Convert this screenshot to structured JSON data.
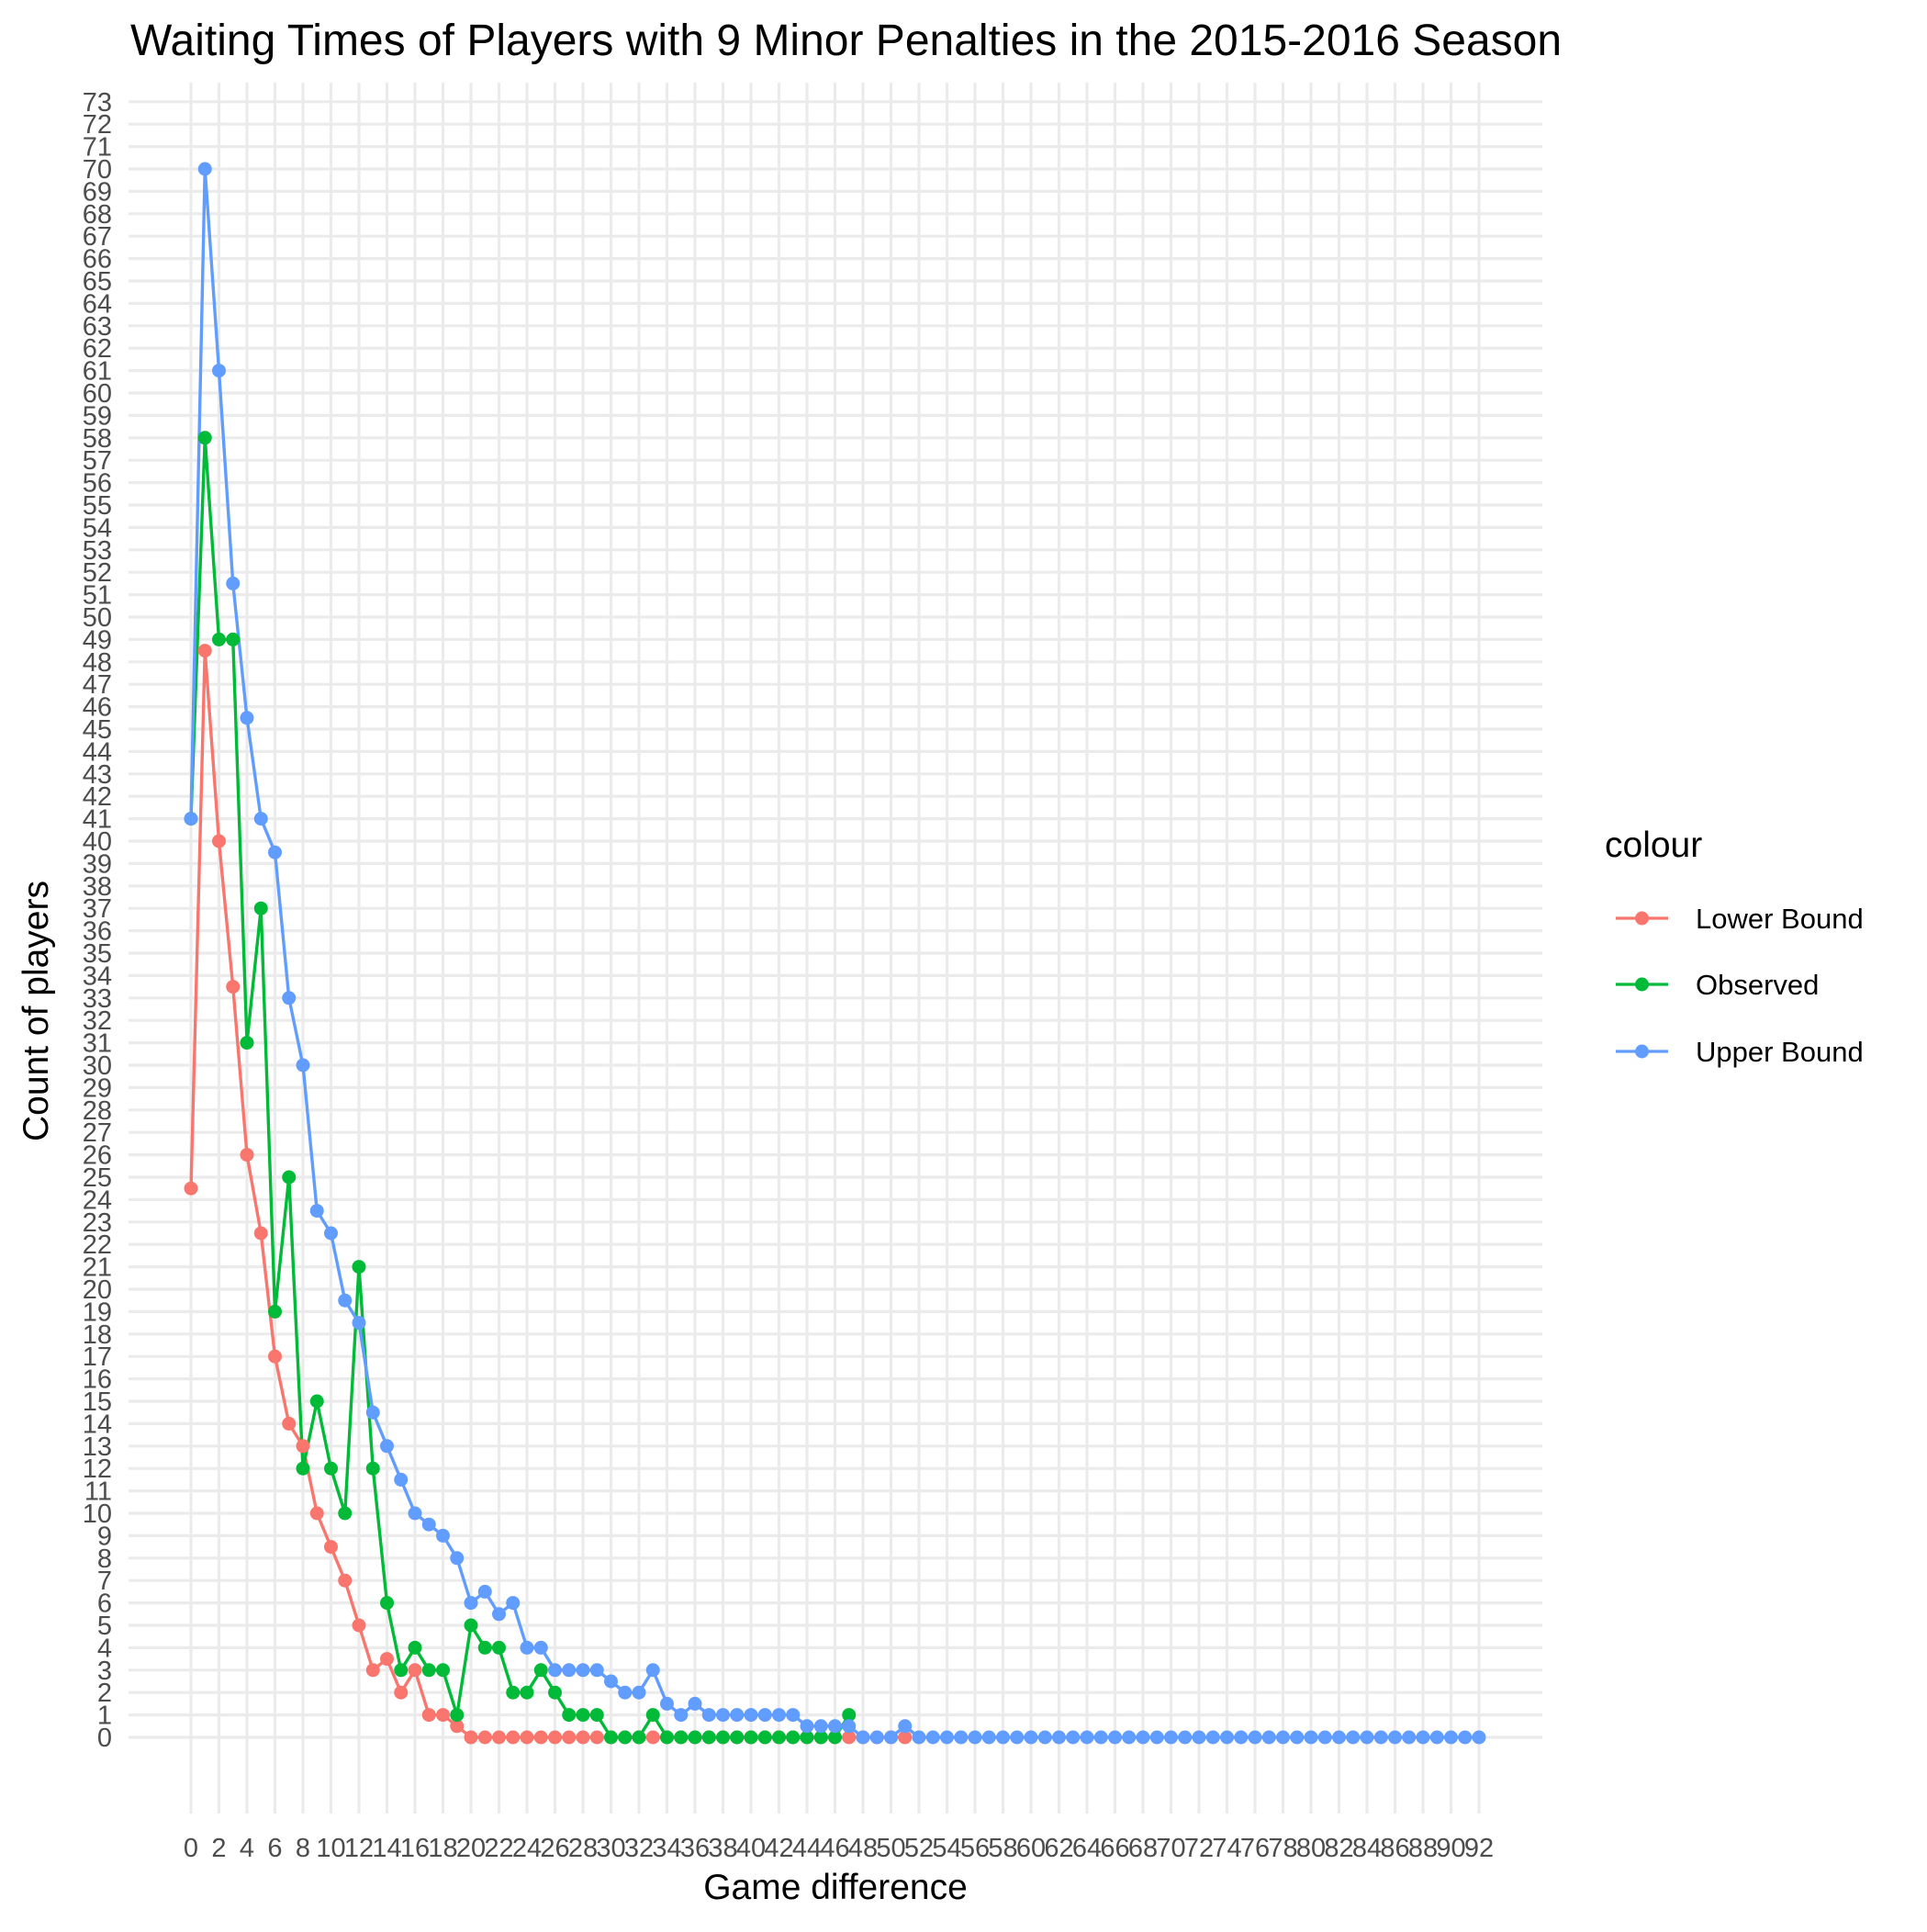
{
  "chart_data": {
    "type": "line",
    "title": "Waiting Times of Players with 9 Minor Penalties in the 2015-2016 Season",
    "xlabel": "Game difference",
    "ylabel": "Count of players",
    "xlim": [
      0,
      92
    ],
    "ylim": [
      0,
      73
    ],
    "x_ticks": [
      0,
      2,
      4,
      6,
      8,
      10,
      12,
      14,
      16,
      18,
      20,
      22,
      24,
      26,
      28,
      30,
      32,
      34,
      36,
      38,
      40,
      42,
      44,
      46,
      48,
      50,
      52,
      54,
      56,
      58,
      60,
      62,
      64,
      66,
      68,
      70,
      72,
      74,
      76,
      78,
      80,
      82,
      84,
      86,
      88,
      90,
      92
    ],
    "y_ticks": [
      0,
      1,
      2,
      3,
      4,
      5,
      6,
      7,
      8,
      9,
      10,
      11,
      12,
      13,
      14,
      15,
      16,
      17,
      18,
      19,
      20,
      21,
      22,
      23,
      24,
      25,
      26,
      27,
      28,
      29,
      30,
      31,
      32,
      33,
      34,
      35,
      36,
      37,
      38,
      39,
      40,
      41,
      42,
      43,
      44,
      45,
      46,
      47,
      48,
      49,
      50,
      51,
      52,
      53,
      54,
      55,
      56,
      57,
      58,
      59,
      60,
      61,
      62,
      63,
      64,
      65,
      66,
      67,
      68,
      69,
      70,
      71,
      72,
      73
    ],
    "grid": true,
    "legend": {
      "title": "colour",
      "position": "right"
    },
    "series": [
      {
        "name": "Lower Bound",
        "color": "#F8766D",
        "x": [
          0,
          1,
          2,
          3,
          4,
          5,
          6,
          7,
          8,
          9,
          10,
          11,
          12,
          13,
          14,
          15,
          16,
          17,
          18,
          19,
          20,
          21,
          22,
          23,
          24,
          25,
          26,
          27,
          28,
          29,
          30,
          31,
          32,
          33,
          34,
          35,
          36,
          37,
          38,
          39,
          40,
          41,
          42,
          43,
          44,
          45,
          46,
          47,
          48,
          49,
          50,
          51
        ],
        "values": [
          24.5,
          48.5,
          40,
          33.5,
          26,
          22.5,
          17,
          14,
          13,
          10,
          8.5,
          7,
          5,
          3,
          3.5,
          2,
          3,
          1,
          1,
          0.5,
          0,
          0,
          0,
          0,
          0,
          0,
          0,
          0,
          0,
          0,
          0,
          0,
          0,
          0,
          0,
          0,
          0,
          0,
          0,
          0,
          0,
          0,
          0,
          0,
          0,
          0,
          0,
          0,
          0,
          0,
          0,
          0
        ]
      },
      {
        "name": "Observed",
        "color": "#00BA38",
        "x": [
          0,
          1,
          2,
          3,
          4,
          5,
          6,
          7,
          8,
          9,
          10,
          11,
          12,
          13,
          14,
          15,
          16,
          17,
          18,
          19,
          20,
          21,
          22,
          23,
          24,
          25,
          26,
          27,
          28,
          29,
          30,
          31,
          32,
          33,
          34,
          35,
          36,
          37,
          38,
          39,
          40,
          41,
          42,
          43,
          44,
          45,
          46,
          47
        ],
        "values": [
          41,
          58,
          49,
          49,
          31,
          37,
          19,
          25,
          12,
          15,
          12,
          10,
          21,
          12,
          6,
          3,
          4,
          3,
          3,
          1,
          5,
          4,
          4,
          2,
          2,
          3,
          2,
          1,
          1,
          1,
          0,
          0,
          0,
          1,
          0,
          0,
          0,
          0,
          0,
          0,
          0,
          0,
          0,
          0,
          0,
          0,
          0,
          1
        ]
      },
      {
        "name": "Upper Bound",
        "color": "#619CFF",
        "x": [
          0,
          1,
          2,
          3,
          4,
          5,
          6,
          7,
          8,
          9,
          10,
          11,
          12,
          13,
          14,
          15,
          16,
          17,
          18,
          19,
          20,
          21,
          22,
          23,
          24,
          25,
          26,
          27,
          28,
          29,
          30,
          31,
          32,
          33,
          34,
          35,
          36,
          37,
          38,
          39,
          40,
          41,
          42,
          43,
          44,
          45,
          46,
          47,
          48,
          49,
          50,
          51,
          52,
          53,
          54,
          55,
          56,
          57,
          58,
          59,
          60,
          61,
          62,
          63,
          64,
          65,
          66,
          67,
          68,
          69,
          70,
          71,
          72,
          73,
          74,
          75,
          76,
          77,
          78,
          79,
          80,
          81,
          82,
          83,
          84,
          85,
          86,
          87,
          88,
          89,
          90,
          91,
          92
        ],
        "values": [
          41,
          70,
          61,
          51.5,
          45.5,
          41,
          39.5,
          33,
          30,
          23.5,
          22.5,
          19.5,
          18.5,
          14.5,
          13,
          11.5,
          10,
          9.5,
          9,
          8,
          6,
          6.5,
          5.5,
          6,
          4,
          4,
          3,
          3,
          3,
          3,
          2.5,
          2,
          2,
          3,
          1.5,
          1,
          1.5,
          1,
          1,
          1,
          1,
          1,
          1,
          1,
          0.5,
          0.5,
          0.5,
          0.5,
          0,
          0,
          0,
          0.5,
          0,
          0,
          0,
          0,
          0,
          0,
          0,
          0,
          0,
          0,
          0,
          0,
          0,
          0,
          0,
          0,
          0,
          0,
          0,
          0,
          0,
          0,
          0,
          0,
          0,
          0,
          0,
          0,
          0,
          0,
          0,
          0,
          0,
          0,
          0,
          0,
          0,
          0,
          0,
          0,
          0
        ]
      }
    ]
  }
}
